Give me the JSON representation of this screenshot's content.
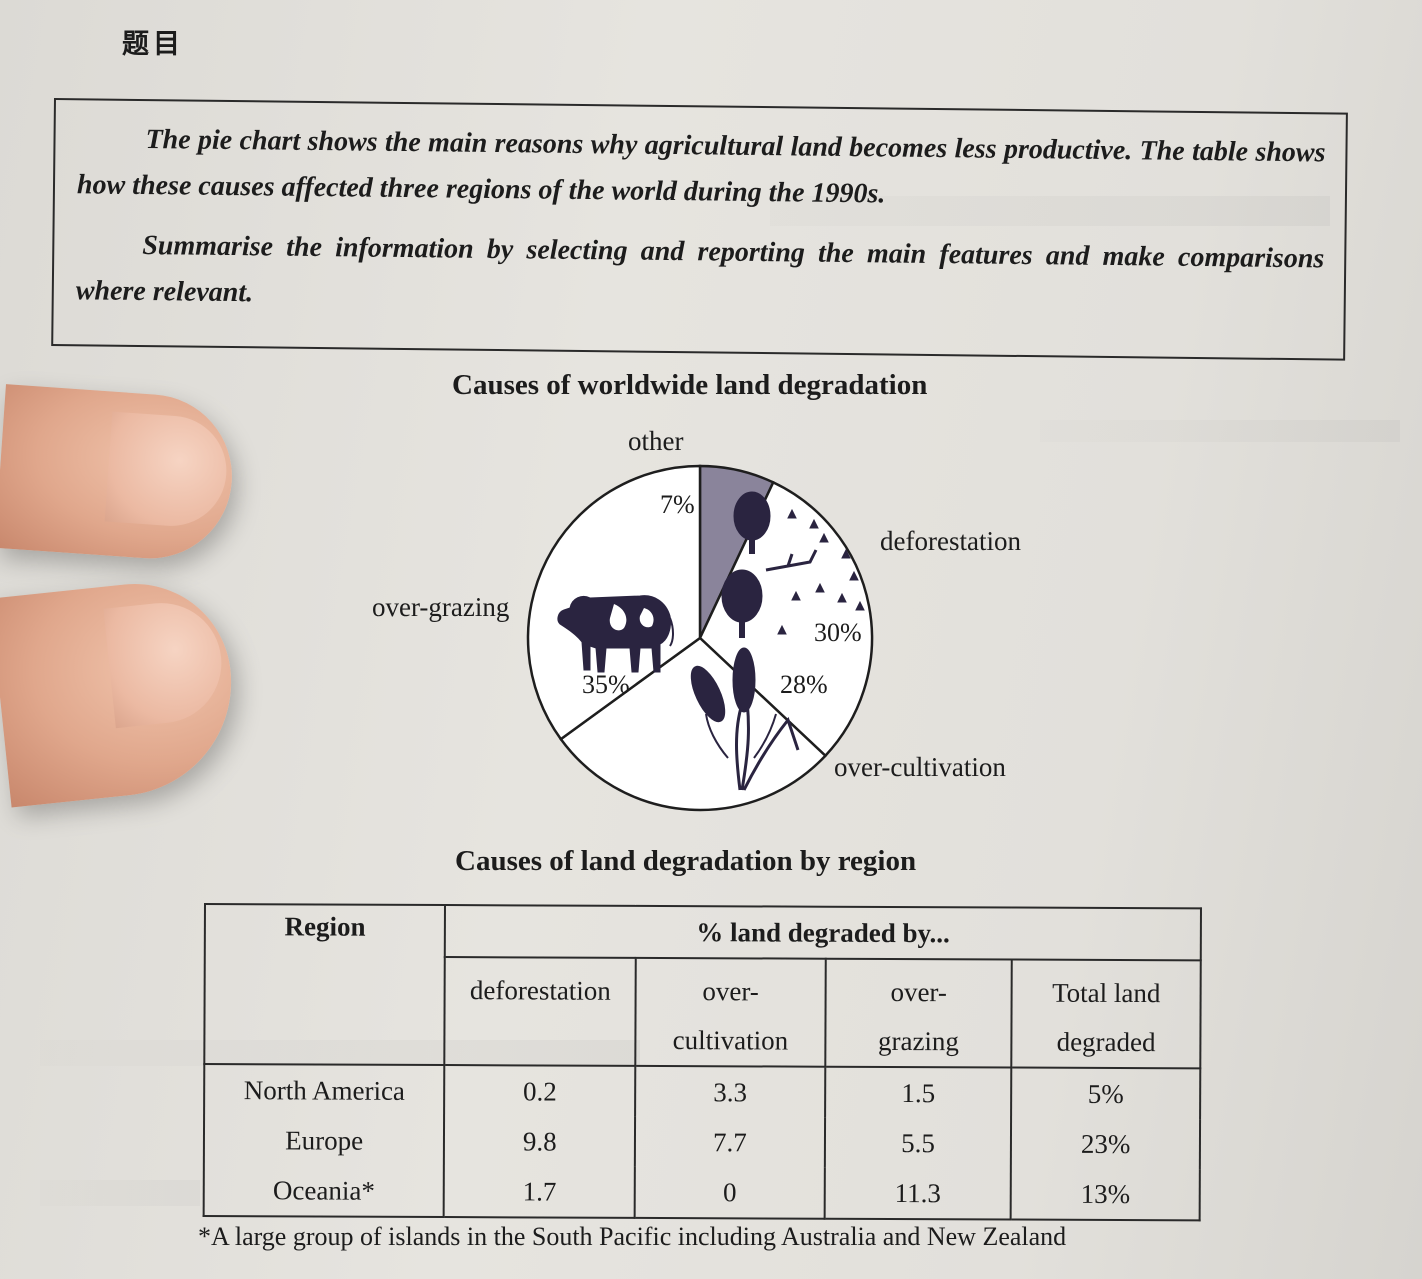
{
  "heading": "题目",
  "task": {
    "paragraph_1": "The pie chart shows the main reasons why agricultural land becomes less productive. The table shows how these causes affected three regions of the world during the 1990s.",
    "paragraph_2": "Summarise the information by selecting and reporting the main features and make comparisons where relevant."
  },
  "chart_data": [
    {
      "type": "pie",
      "title": "Causes of worldwide land degradation",
      "slices": [
        {
          "label": "other",
          "value": 7,
          "value_label": "7%",
          "color": "#8a849b"
        },
        {
          "label": "deforestation",
          "value": 30,
          "value_label": "30%",
          "color": "#ffffff"
        },
        {
          "label": "over-cultivation",
          "value": 28,
          "value_label": "28%",
          "color": "#ffffff"
        },
        {
          "label": "over-grazing",
          "value": 35,
          "value_label": "35%",
          "color": "#ffffff"
        }
      ]
    },
    {
      "type": "table",
      "title": "Causes of land degradation by region",
      "header_region": "Region",
      "header_group": "% land degraded by...",
      "columns": [
        [
          "deforestation",
          ""
        ],
        [
          "over-",
          "cultivation"
        ],
        [
          "over-",
          "grazing"
        ],
        [
          "Total land",
          "degraded"
        ]
      ],
      "rows": [
        {
          "region": "North America",
          "cells": [
            "0.2",
            "3.3",
            "1.5",
            "5%"
          ]
        },
        {
          "region": "Europe",
          "cells": [
            "9.8",
            "7.7",
            "5.5",
            "23%"
          ]
        },
        {
          "region": "Oceania*",
          "cells": [
            "1.7",
            "0",
            "11.3",
            "13%"
          ]
        }
      ],
      "footnote": "*A large group of islands in the South Pacific including Australia and New Zealand"
    }
  ],
  "colors": {
    "page": "#e4e2dd",
    "ink": "#1c1c1c",
    "slice_other": "#8a849b"
  },
  "icons": {
    "deforestation": "tree-stumps-icon",
    "over_grazing": "cow-icon",
    "over_cultivation": "wheat-icon"
  }
}
